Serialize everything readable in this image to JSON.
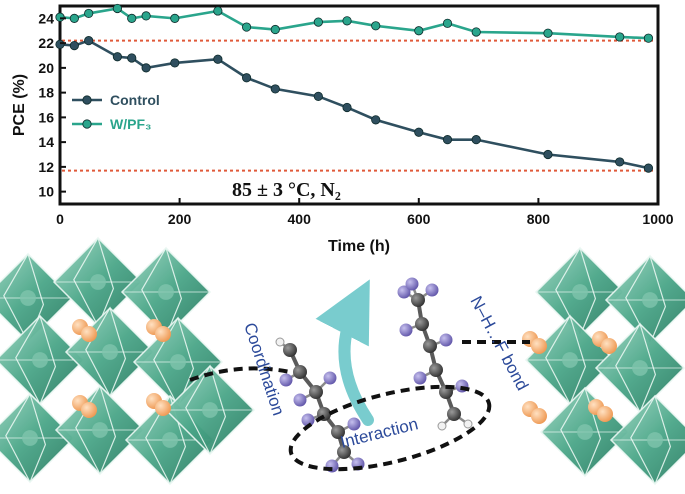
{
  "chart_data": {
    "type": "line",
    "title": "",
    "xlabel": "Time (h)",
    "ylabel": "PCE (%)",
    "xlim": [
      0,
      1000
    ],
    "ylim": [
      9,
      25
    ],
    "xticks": [
      0,
      200,
      400,
      600,
      800,
      1000
    ],
    "yticks": [
      10,
      12,
      14,
      16,
      18,
      20,
      22,
      24
    ],
    "grid": false,
    "legend_position": "left",
    "reference_lines": [
      22.2,
      11.7
    ],
    "annotation": "85 ± 3 °C,  N₂",
    "series": [
      {
        "name": "Control",
        "color": "#2f4f5f",
        "x": [
          0,
          24,
          48,
          96,
          120,
          144,
          192,
          264,
          312,
          360,
          432,
          480,
          528,
          600,
          648,
          696,
          816,
          936,
          984
        ],
        "y": [
          21.9,
          21.8,
          22.2,
          20.9,
          20.8,
          20.0,
          20.4,
          20.7,
          19.2,
          18.3,
          17.7,
          16.8,
          15.8,
          14.8,
          14.2,
          14.2,
          13.0,
          12.4,
          11.9
        ]
      },
      {
        "name": "W/PF₃",
        "color": "#2aa58c",
        "x": [
          0,
          24,
          48,
          96,
          120,
          144,
          192,
          264,
          312,
          360,
          432,
          480,
          528,
          600,
          648,
          696,
          816,
          936,
          984
        ],
        "y": [
          24.1,
          24.0,
          24.4,
          24.8,
          24.0,
          24.2,
          24.0,
          24.6,
          23.3,
          23.1,
          23.7,
          23.8,
          23.4,
          23.0,
          23.6,
          22.9,
          22.8,
          22.5,
          22.4
        ]
      }
    ]
  },
  "schematic": {
    "labels": {
      "coordination": "Coordination",
      "interaction": "Interaction",
      "hbond": "N–H…F bond"
    },
    "colors": {
      "octahedron": "#3f9a80",
      "octahedron_light": "#7fc4ad",
      "cation": "#f2a567",
      "fluorine": "#7b6fc0",
      "carbon": "#3c3c3c",
      "arrow": "#62c4c6"
    }
  }
}
